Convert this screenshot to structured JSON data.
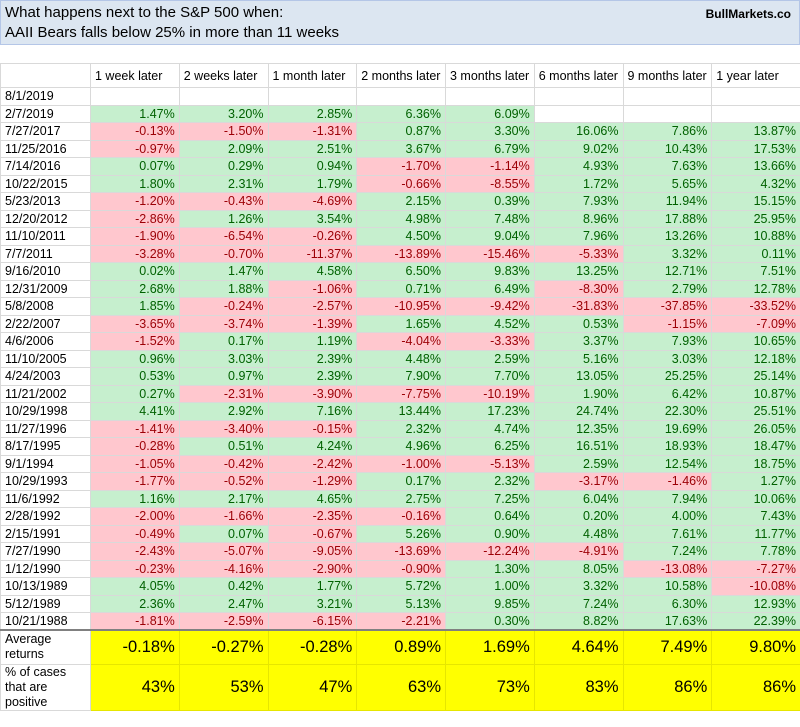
{
  "title": {
    "line1": "What happens next to the S&P 500 when:",
    "line2": "AAII Bears falls below 25% in more than 11 weeks",
    "brand": "BullMarkets.co"
  },
  "columns": [
    "1 week later",
    "2 weeks later",
    "1 month later",
    "2 months later",
    "3 months later",
    "6 months later",
    "9 months later",
    "1 year later"
  ],
  "rows": [
    {
      "date": "8/1/2019",
      "values": [
        "",
        "",
        "",
        "",
        "",
        "",
        "",
        ""
      ]
    },
    {
      "date": "2/7/2019",
      "values": [
        "1.47%",
        "3.20%",
        "2.85%",
        "6.36%",
        "6.09%",
        "",
        "",
        ""
      ]
    },
    {
      "date": "7/27/2017",
      "values": [
        "-0.13%",
        "-1.50%",
        "-1.31%",
        "0.87%",
        "3.30%",
        "16.06%",
        "7.86%",
        "13.87%"
      ]
    },
    {
      "date": "11/25/2016",
      "values": [
        "-0.97%",
        "2.09%",
        "2.51%",
        "3.67%",
        "6.79%",
        "9.02%",
        "10.43%",
        "17.53%"
      ]
    },
    {
      "date": "7/14/2016",
      "values": [
        "0.07%",
        "0.29%",
        "0.94%",
        "-1.70%",
        "-1.14%",
        "4.93%",
        "7.63%",
        "13.66%"
      ]
    },
    {
      "date": "10/22/2015",
      "values": [
        "1.80%",
        "2.31%",
        "1.79%",
        "-0.66%",
        "-8.55%",
        "1.72%",
        "5.65%",
        "4.32%"
      ]
    },
    {
      "date": "5/23/2013",
      "values": [
        "-1.20%",
        "-0.43%",
        "-4.69%",
        "2.15%",
        "0.39%",
        "7.93%",
        "11.94%",
        "15.15%"
      ]
    },
    {
      "date": "12/20/2012",
      "values": [
        "-2.86%",
        "1.26%",
        "3.54%",
        "4.98%",
        "7.48%",
        "8.96%",
        "17.88%",
        "25.95%"
      ]
    },
    {
      "date": "11/10/2011",
      "values": [
        "-1.90%",
        "-6.54%",
        "-0.26%",
        "4.50%",
        "9.04%",
        "7.96%",
        "13.26%",
        "10.88%"
      ]
    },
    {
      "date": "7/7/2011",
      "values": [
        "-3.28%",
        "-0.70%",
        "-11.37%",
        "-13.89%",
        "-15.46%",
        "-5.33%",
        "3.32%",
        "0.11%"
      ]
    },
    {
      "date": "9/16/2010",
      "values": [
        "0.02%",
        "1.47%",
        "4.58%",
        "6.50%",
        "9.83%",
        "13.25%",
        "12.71%",
        "7.51%"
      ]
    },
    {
      "date": "12/31/2009",
      "values": [
        "2.68%",
        "1.88%",
        "-1.06%",
        "0.71%",
        "6.49%",
        "-8.30%",
        "2.79%",
        "12.78%"
      ]
    },
    {
      "date": "5/8/2008",
      "values": [
        "1.85%",
        "-0.24%",
        "-2.57%",
        "-10.95%",
        "-9.42%",
        "-31.83%",
        "-37.85%",
        "-33.52%"
      ]
    },
    {
      "date": "2/22/2007",
      "values": [
        "-3.65%",
        "-3.74%",
        "-1.39%",
        "1.65%",
        "4.52%",
        "0.53%",
        "-1.15%",
        "-7.09%"
      ]
    },
    {
      "date": "4/6/2006",
      "values": [
        "-1.52%",
        "0.17%",
        "1.19%",
        "-4.04%",
        "-3.33%",
        "3.37%",
        "7.93%",
        "10.65%"
      ]
    },
    {
      "date": "11/10/2005",
      "values": [
        "0.96%",
        "3.03%",
        "2.39%",
        "4.48%",
        "2.59%",
        "5.16%",
        "3.03%",
        "12.18%"
      ]
    },
    {
      "date": "4/24/2003",
      "values": [
        "0.53%",
        "0.97%",
        "2.39%",
        "7.90%",
        "7.70%",
        "13.05%",
        "25.25%",
        "25.14%"
      ]
    },
    {
      "date": "11/21/2002",
      "values": [
        "0.27%",
        "-2.31%",
        "-3.90%",
        "-7.75%",
        "-10.19%",
        "1.90%",
        "6.42%",
        "10.87%"
      ]
    },
    {
      "date": "10/29/1998",
      "values": [
        "4.41%",
        "2.92%",
        "7.16%",
        "13.44%",
        "17.23%",
        "24.74%",
        "22.30%",
        "25.51%"
      ]
    },
    {
      "date": "11/27/1996",
      "values": [
        "-1.41%",
        "-3.40%",
        "-0.15%",
        "2.32%",
        "4.74%",
        "12.35%",
        "19.69%",
        "26.05%"
      ]
    },
    {
      "date": "8/17/1995",
      "values": [
        "-0.28%",
        "0.51%",
        "4.24%",
        "4.96%",
        "6.25%",
        "16.51%",
        "18.93%",
        "18.47%"
      ]
    },
    {
      "date": "9/1/1994",
      "values": [
        "-1.05%",
        "-0.42%",
        "-2.42%",
        "-1.00%",
        "-5.13%",
        "2.59%",
        "12.54%",
        "18.75%"
      ]
    },
    {
      "date": "10/29/1993",
      "values": [
        "-1.77%",
        "-0.52%",
        "-1.29%",
        "0.17%",
        "2.32%",
        "-3.17%",
        "-1.46%",
        "1.27%"
      ]
    },
    {
      "date": "11/6/1992",
      "values": [
        "1.16%",
        "2.17%",
        "4.65%",
        "2.75%",
        "7.25%",
        "6.04%",
        "7.94%",
        "10.06%"
      ]
    },
    {
      "date": "2/28/1992",
      "values": [
        "-2.00%",
        "-1.66%",
        "-2.35%",
        "-0.16%",
        "0.64%",
        "0.20%",
        "4.00%",
        "7.43%"
      ]
    },
    {
      "date": "2/15/1991",
      "values": [
        "-0.49%",
        "0.07%",
        "-0.67%",
        "5.26%",
        "0.90%",
        "4.48%",
        "7.61%",
        "11.77%"
      ]
    },
    {
      "date": "7/27/1990",
      "values": [
        "-2.43%",
        "-5.07%",
        "-9.05%",
        "-13.69%",
        "-12.24%",
        "-4.91%",
        "7.24%",
        "7.78%"
      ]
    },
    {
      "date": "1/12/1990",
      "values": [
        "-0.23%",
        "-4.16%",
        "-2.90%",
        "-0.90%",
        "1.30%",
        "8.05%",
        "-13.08%",
        "-7.27%"
      ]
    },
    {
      "date": "10/13/1989",
      "values": [
        "4.05%",
        "0.42%",
        "1.77%",
        "5.72%",
        "1.00%",
        "3.32%",
        "10.58%",
        "-10.08%"
      ]
    },
    {
      "date": "5/12/1989",
      "values": [
        "2.36%",
        "2.47%",
        "3.21%",
        "5.13%",
        "9.85%",
        "7.24%",
        "6.30%",
        "12.93%"
      ]
    },
    {
      "date": "10/21/1988",
      "values": [
        "-1.81%",
        "-2.59%",
        "-6.15%",
        "-2.21%",
        "0.30%",
        "8.82%",
        "17.63%",
        "22.39%"
      ]
    }
  ],
  "summary": {
    "avg_label": "Average returns",
    "avg_values": [
      "-0.18%",
      "-0.27%",
      "-0.28%",
      "0.89%",
      "1.69%",
      "4.64%",
      "7.49%",
      "9.80%"
    ],
    "pos_label": "% of cases that are positive",
    "pos_values": [
      "43%",
      "53%",
      "47%",
      "63%",
      "73%",
      "83%",
      "86%",
      "86%"
    ]
  }
}
